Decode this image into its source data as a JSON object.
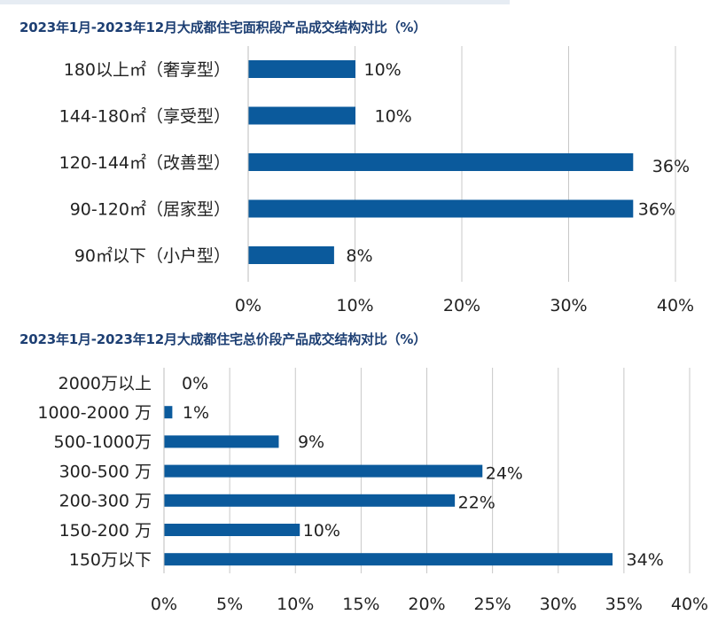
{
  "chart_data": [
    {
      "type": "bar",
      "orientation": "horizontal",
      "title": "2023年1月-2023年12月大成都住宅面积段产品成交结构对比（%）",
      "categories": [
        "180以上㎡（奢享型）",
        "144-180㎡（享受型）",
        "120-144㎡（改善型）",
        "90-120㎡（居家型）",
        "90㎡以下（小户型）"
      ],
      "values": [
        10,
        10,
        36,
        36,
        8
      ],
      "value_labels": [
        "10%",
        "10%",
        "36%",
        "36%",
        "8%"
      ],
      "xlim": [
        0,
        40
      ],
      "xticks": [
        0,
        10,
        20,
        30,
        40
      ],
      "xtick_labels": [
        "0%",
        "10%",
        "20%",
        "30%",
        "40%"
      ],
      "grid": true,
      "bar_color": "#0b5a9c"
    },
    {
      "type": "bar",
      "orientation": "horizontal",
      "title": "2023年1月-2023年12月大成都住宅总价段产品成交结构对比（%）",
      "categories": [
        "2000万以上",
        "1000-2000 万",
        "500-1000万",
        "300-500 万",
        "200-300 万",
        "150-200 万",
        "150万以下"
      ],
      "values": [
        0,
        0.6,
        8.7,
        24.2,
        22.1,
        10.3,
        34.1
      ],
      "value_labels": [
        "0%",
        "1%",
        "9%",
        "24%",
        "22%",
        "10%",
        "34%"
      ],
      "xlim": [
        0,
        40
      ],
      "xticks": [
        0,
        5,
        10,
        15,
        20,
        25,
        30,
        35,
        40
      ],
      "xtick_labels": [
        "0%",
        "5%",
        "10%",
        "15%",
        "20%",
        "25%",
        "30%",
        "35%",
        "40%"
      ],
      "grid": true,
      "bar_color": "#0b5a9c"
    }
  ]
}
